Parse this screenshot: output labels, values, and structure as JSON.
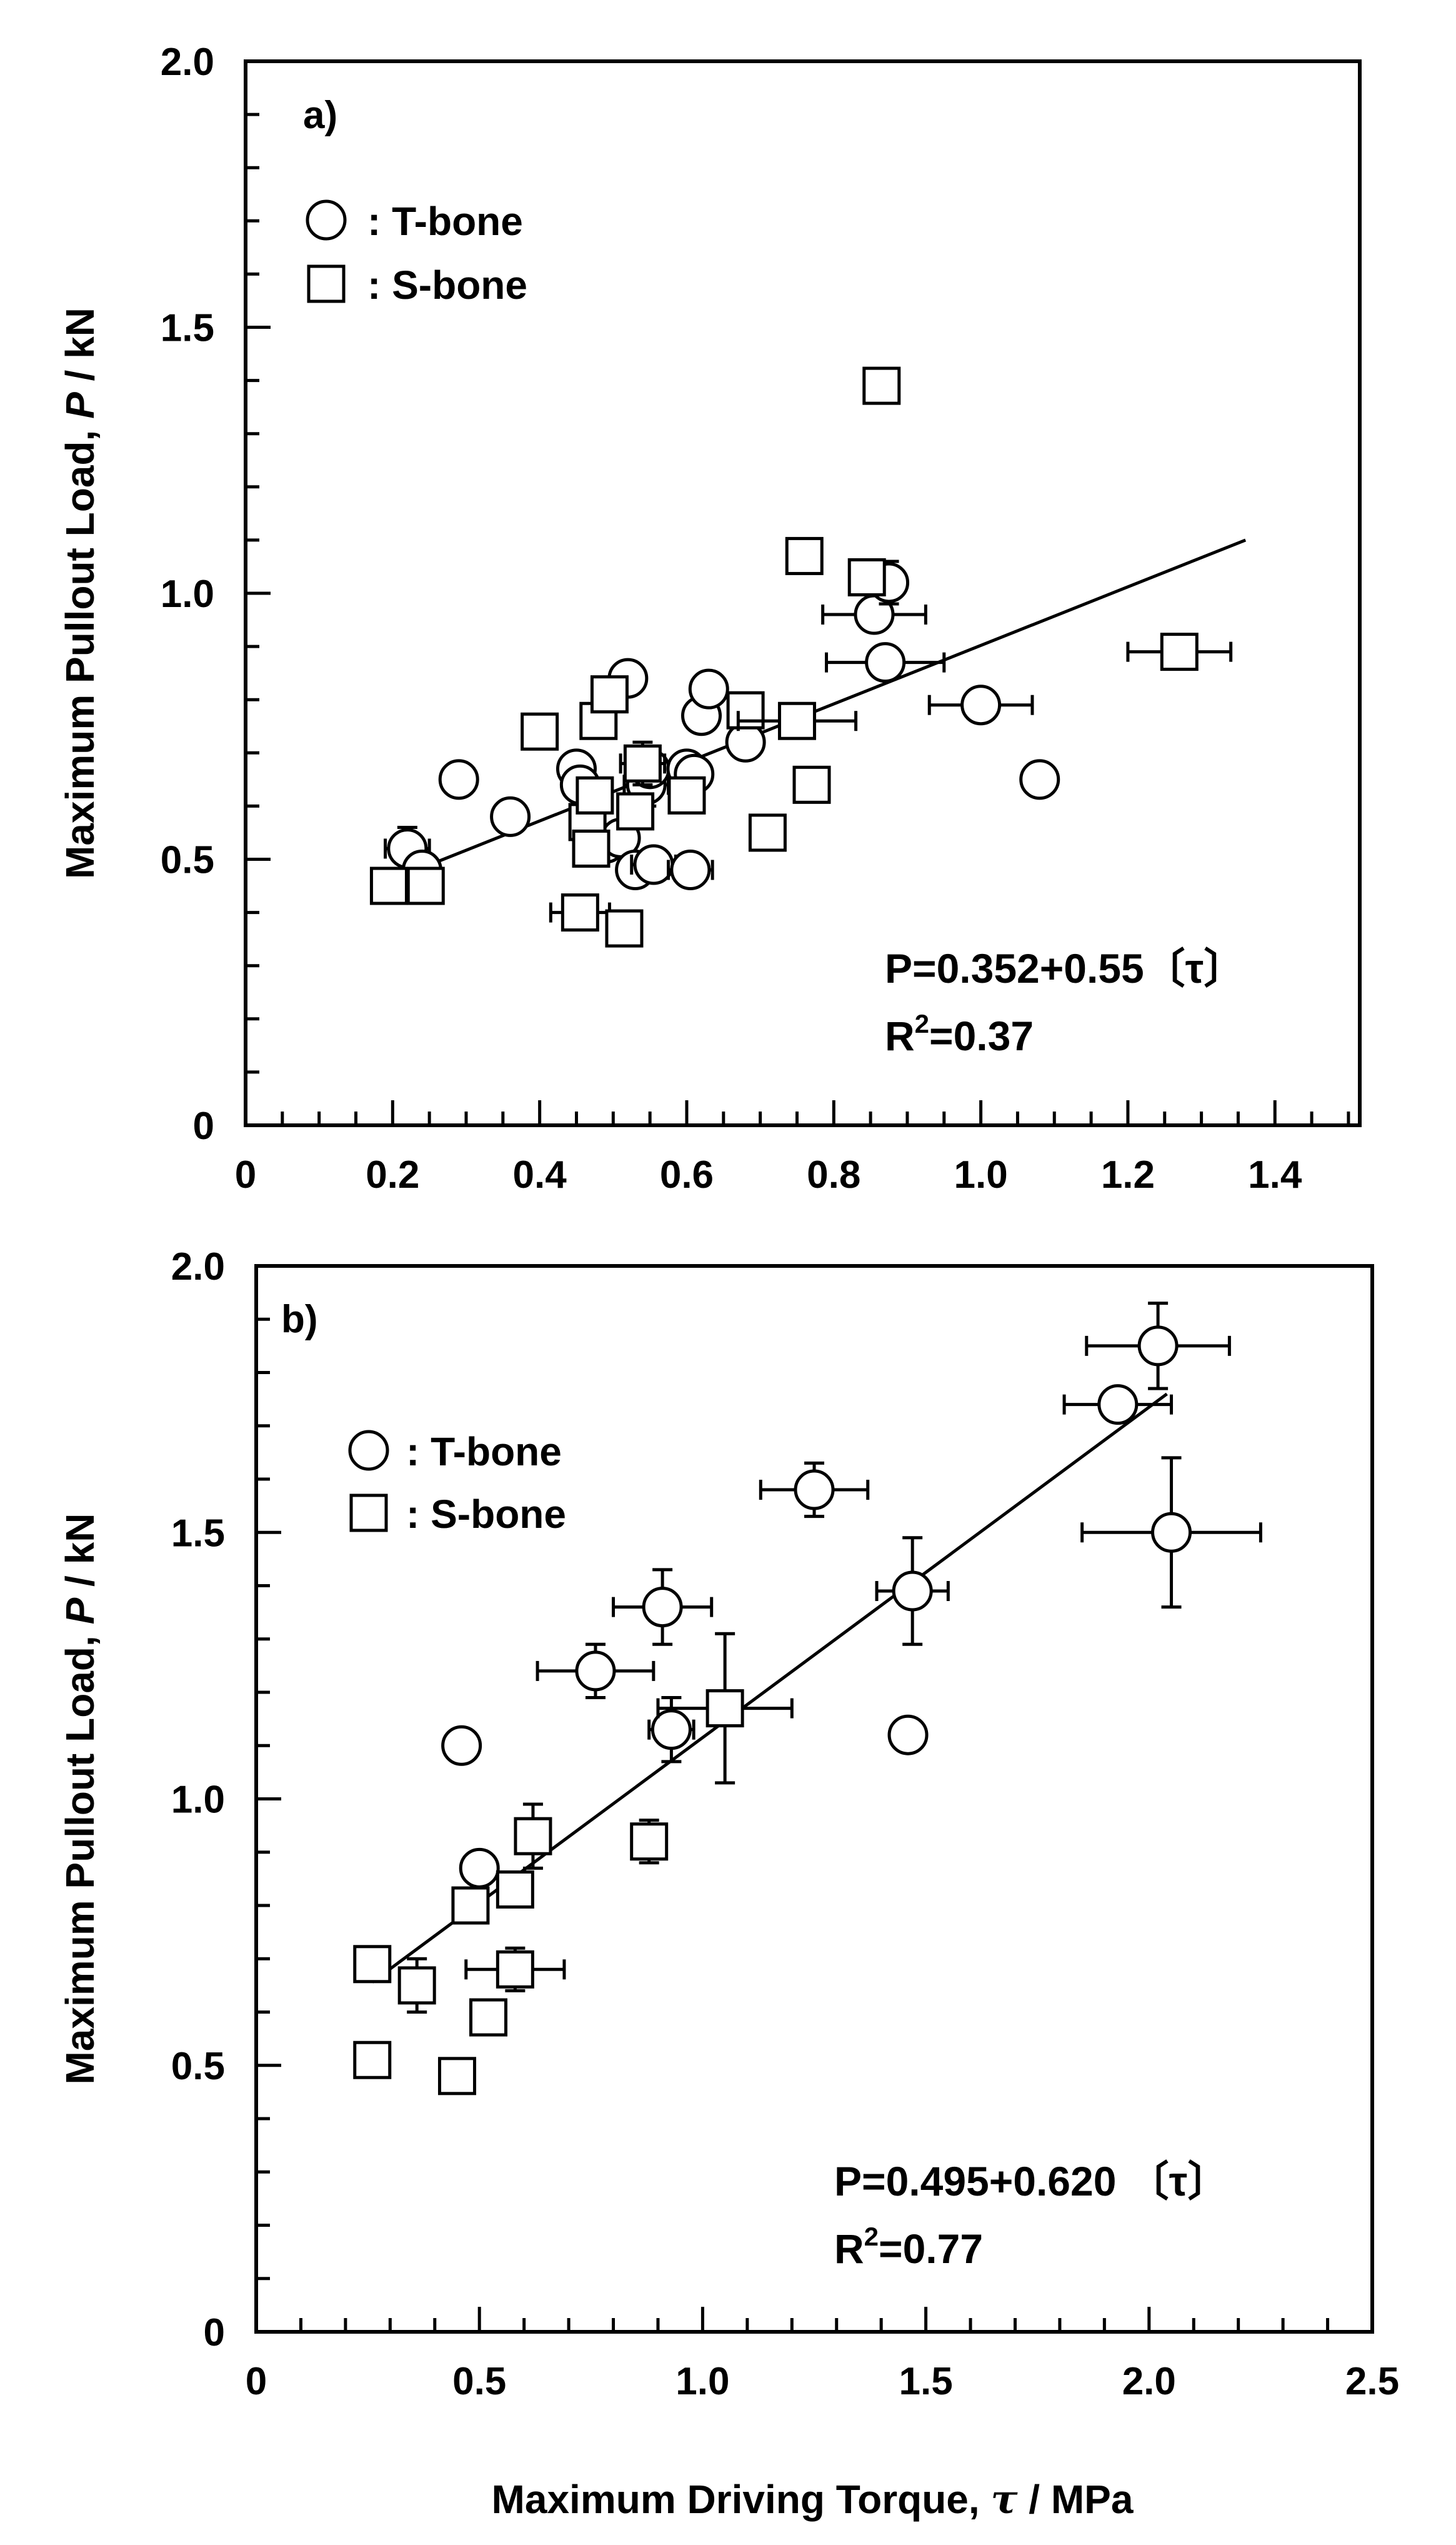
{
  "charts": [
    {
      "panel_label": "a)",
      "type": "scatter",
      "ylabel_prefix": "Maximum Pullout Load, ",
      "ylabel_italic": "P",
      "ylabel_suffix": " / kN",
      "xlim": [
        0,
        1.5
      ],
      "ylim": [
        0,
        2.0
      ],
      "x_ticks": [
        0,
        0.2,
        0.4,
        0.6,
        0.8,
        1.0,
        1.2,
        1.4
      ],
      "x_tick_labels": [
        "0",
        "0.2",
        "0.4",
        "0.6",
        "0.8",
        "1.0",
        "1.2",
        "1.4"
      ],
      "y_ticks": [
        0,
        0.5,
        1.0,
        1.5,
        2.0
      ],
      "y_tick_labels": [
        "0",
        "0.5",
        "1.0",
        "1.5",
        "2.0"
      ],
      "legend": [
        {
          "symbol": "circle",
          "label": ": T-bone"
        },
        {
          "symbol": "square",
          "label": ": S-bone"
        }
      ],
      "equation_line1": "P=0.352+0.55〔τ〕",
      "equation_line2_prefix": "R",
      "equation_line2_sup": "2",
      "equation_line2_suffix": "=0.37",
      "fit": {
        "intercept": 0.352,
        "slope": 0.55,
        "x_range": [
          0.2,
          1.36
        ]
      },
      "series": [
        {
          "name": "T-bone",
          "marker": "circle",
          "points": [
            {
              "x": 0.22,
              "y": 0.52,
              "xerr": 0.03,
              "yerr": 0.04
            },
            {
              "x": 0.24,
              "y": 0.48
            },
            {
              "x": 0.29,
              "y": 0.65
            },
            {
              "x": 0.36,
              "y": 0.58
            },
            {
              "x": 0.45,
              "y": 0.67
            },
            {
              "x": 0.455,
              "y": 0.64
            },
            {
              "x": 0.49,
              "y": 0.53
            },
            {
              "x": 0.51,
              "y": 0.54
            },
            {
              "x": 0.52,
              "y": 0.84
            },
            {
              "x": 0.53,
              "y": 0.48
            },
            {
              "x": 0.545,
              "y": 0.64,
              "xerr": 0.03,
              "yerr": 0.04
            },
            {
              "x": 0.55,
              "y": 0.67
            },
            {
              "x": 0.555,
              "y": 0.49,
              "xerr": 0.03
            },
            {
              "x": 0.6,
              "y": 0.67
            },
            {
              "x": 0.605,
              "y": 0.48,
              "xerr": 0.03
            },
            {
              "x": 0.61,
              "y": 0.66
            },
            {
              "x": 0.62,
              "y": 0.77
            },
            {
              "x": 0.63,
              "y": 0.82
            },
            {
              "x": 0.68,
              "y": 0.72
            },
            {
              "x": 0.855,
              "y": 0.96,
              "xerr": 0.07
            },
            {
              "x": 0.87,
              "y": 0.87,
              "xerr": 0.08
            },
            {
              "x": 0.875,
              "y": 1.02,
              "yerr": 0.04
            },
            {
              "x": 1.0,
              "y": 0.79,
              "xerr": 0.07
            },
            {
              "x": 1.08,
              "y": 0.65
            }
          ]
        },
        {
          "name": "S-bone",
          "marker": "square",
          "points": [
            {
              "x": 0.195,
              "y": 0.45,
              "yerr": 0.03
            },
            {
              "x": 0.245,
              "y": 0.45
            },
            {
              "x": 0.4,
              "y": 0.74
            },
            {
              "x": 0.455,
              "y": 0.4,
              "xerr": 0.04
            },
            {
              "x": 0.465,
              "y": 0.57
            },
            {
              "x": 0.47,
              "y": 0.52
            },
            {
              "x": 0.475,
              "y": 0.62
            },
            {
              "x": 0.48,
              "y": 0.76
            },
            {
              "x": 0.495,
              "y": 0.81
            },
            {
              "x": 0.515,
              "y": 0.37
            },
            {
              "x": 0.53,
              "y": 0.59
            },
            {
              "x": 0.54,
              "y": 0.68,
              "xerr": 0.03,
              "yerr": 0.04
            },
            {
              "x": 0.6,
              "y": 0.62
            },
            {
              "x": 0.68,
              "y": 0.78
            },
            {
              "x": 0.71,
              "y": 0.55
            },
            {
              "x": 0.75,
              "y": 0.76,
              "xerr": 0.08
            },
            {
              "x": 0.76,
              "y": 1.07
            },
            {
              "x": 0.77,
              "y": 0.64
            },
            {
              "x": 0.845,
              "y": 1.03
            },
            {
              "x": 0.865,
              "y": 1.39
            },
            {
              "x": 1.27,
              "y": 0.89,
              "xerr": 0.07
            }
          ]
        }
      ]
    },
    {
      "panel_label": "b)",
      "type": "scatter",
      "xlabel_prefix": "Maximum Driving Torque, ",
      "xlabel_greek": "τ",
      "xlabel_suffix": " / MPa",
      "ylabel_prefix": "Maximum Pullout Load, ",
      "ylabel_italic": "P",
      "ylabel_suffix": " / kN",
      "xlim": [
        0,
        2.5
      ],
      "ylim": [
        0,
        2.0
      ],
      "x_ticks": [
        0,
        0.5,
        1.0,
        1.5,
        2.0,
        2.5
      ],
      "x_tick_labels": [
        "0",
        "0.5",
        "1.0",
        "1.5",
        "2.0",
        "2.5"
      ],
      "y_ticks": [
        0,
        0.5,
        1.0,
        1.5,
        2.0
      ],
      "y_tick_labels": [
        "0",
        "0.5",
        "1.0",
        "1.5",
        "2.0"
      ],
      "legend": [
        {
          "symbol": "circle",
          "label": ": T-bone"
        },
        {
          "symbol": "square",
          "label": ": S-bone"
        }
      ],
      "equation_line1": "P=0.495+0.620 〔τ〕",
      "equation_line2_prefix": "R",
      "equation_line2_sup": "2",
      "equation_line2_suffix": "=0.77",
      "fit": {
        "intercept": 0.495,
        "slope": 0.62,
        "x_range": [
          0.26,
          2.04
        ]
      },
      "series": [
        {
          "name": "T-bone",
          "marker": "circle",
          "points": [
            {
              "x": 0.46,
              "y": 1.1
            },
            {
              "x": 0.5,
              "y": 0.87
            },
            {
              "x": 0.76,
              "y": 1.24,
              "xerr": 0.13,
              "yerr": 0.05
            },
            {
              "x": 0.91,
              "y": 1.36,
              "xerr": 0.11,
              "yerr": 0.07
            },
            {
              "x": 0.93,
              "y": 1.13,
              "xerr": 0.05,
              "yerr": 0.06
            },
            {
              "x": 1.25,
              "y": 1.58,
              "xerr": 0.12,
              "yerr": 0.05
            },
            {
              "x": 1.46,
              "y": 1.12
            },
            {
              "x": 1.47,
              "y": 1.39,
              "xerr": 0.08,
              "yerr": 0.1
            },
            {
              "x": 1.93,
              "y": 1.74,
              "xerr": 0.12
            },
            {
              "x": 2.02,
              "y": 1.85,
              "xerr": 0.16,
              "yerr": 0.08
            },
            {
              "x": 2.05,
              "y": 1.5,
              "xerr": 0.2,
              "yerr": 0.14
            }
          ]
        },
        {
          "name": "S-bone",
          "marker": "square",
          "points": [
            {
              "x": 0.26,
              "y": 0.51
            },
            {
              "x": 0.26,
              "y": 0.69
            },
            {
              "x": 0.36,
              "y": 0.65,
              "yerr": 0.05
            },
            {
              "x": 0.45,
              "y": 0.48
            },
            {
              "x": 0.48,
              "y": 0.8
            },
            {
              "x": 0.52,
              "y": 0.59
            },
            {
              "x": 0.58,
              "y": 0.83
            },
            {
              "x": 0.58,
              "y": 0.68,
              "xerr": 0.11,
              "yerr": 0.04
            },
            {
              "x": 0.62,
              "y": 0.93,
              "yerr": 0.06
            },
            {
              "x": 0.88,
              "y": 0.92,
              "yerr": 0.04
            },
            {
              "x": 1.05,
              "y": 1.17,
              "xerr": 0.15,
              "yerr": 0.14
            }
          ]
        }
      ]
    }
  ]
}
